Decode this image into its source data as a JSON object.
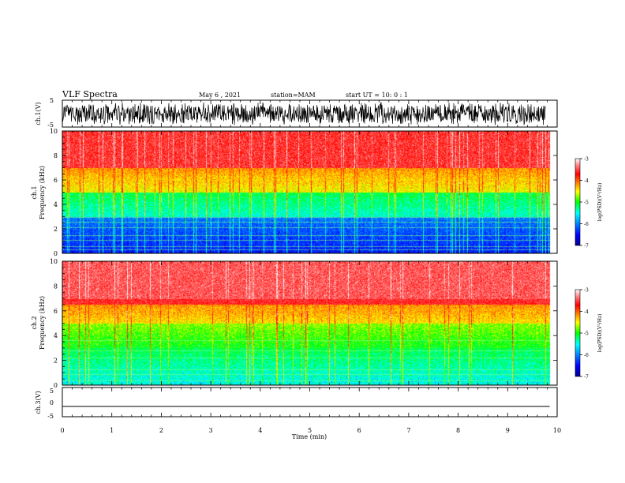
{
  "header": {
    "title": "VLF Spectra",
    "date": "May 6  , 2021",
    "station": "station=MAM",
    "start": "start  UT  =   10: 0  : 1"
  },
  "chart_data": [
    {
      "type": "line",
      "panel": "ch1-waveform",
      "ylabel": "ch.1(V)",
      "ylim": [
        -5,
        5
      ],
      "yticks": [
        "5",
        "-5"
      ],
      "xlim": [
        0,
        10
      ],
      "color": "#000000",
      "description_values": "dense broadband waveform spanning approx -4 to 4 V"
    },
    {
      "type": "heatmap",
      "panel": "ch1-spectrogram",
      "ylabel_line1": "ch.1",
      "ylabel_line2": "Frequency  (kHz)",
      "ylim": [
        0,
        10
      ],
      "yticks": [
        "0",
        "2",
        "4",
        "6",
        "8",
        "10"
      ],
      "xlim": [
        0,
        10
      ],
      "colorbar": {
        "label": "log(PSD)(V²/Hz)",
        "ticks": [
          "-3",
          "-4",
          "-5",
          "-6",
          "-7"
        ],
        "range": [
          -7,
          -3
        ]
      },
      "dominant_levels": {
        "0-3kHz": -6.5,
        "3-5kHz": -5.5,
        "5-7kHz": -4.6,
        "7-10kHz": -3.6
      },
      "lines_khz": [
        0.3,
        0.6,
        1.1,
        1.5,
        2.1,
        2.6,
        3.0
      ]
    },
    {
      "type": "heatmap",
      "panel": "ch2-spectrogram",
      "ylabel_line1": "ch.2",
      "ylabel_line2": "Frequency  (kHz)",
      "ylim": [
        0,
        10
      ],
      "yticks": [
        "0",
        "2",
        "4",
        "6",
        "8",
        "10"
      ],
      "xlim": [
        0,
        10
      ],
      "colorbar": {
        "label": "log(PSD)(V²/Hz)",
        "ticks": [
          "-3",
          "-4",
          "-5",
          "-6",
          "-7"
        ],
        "range": [
          -7,
          -3
        ]
      },
      "dominant_levels": {
        "0-3kHz": -5.6,
        "3-5kHz": -5.1,
        "5-7kHz": -4.5,
        "7-10kHz": -3.5
      },
      "lines_khz": [
        0.4,
        0.9,
        1.3,
        2.2,
        2.8,
        3.6
      ]
    },
    {
      "type": "line",
      "panel": "ch3-waveform",
      "ylabel": "ch.3(V)",
      "ylim": [
        -5,
        5
      ],
      "yticks": [
        "5",
        "0",
        "-5"
      ],
      "xlim": [
        0,
        10
      ],
      "x": [
        0,
        9.85
      ],
      "y": [
        -1.5,
        -1.5
      ],
      "color": "#000000"
    }
  ],
  "xaxis": {
    "label": "Time  (min)",
    "ticks": [
      "0",
      "1",
      "2",
      "3",
      "4",
      "5",
      "6",
      "7",
      "8",
      "9",
      "10"
    ]
  }
}
